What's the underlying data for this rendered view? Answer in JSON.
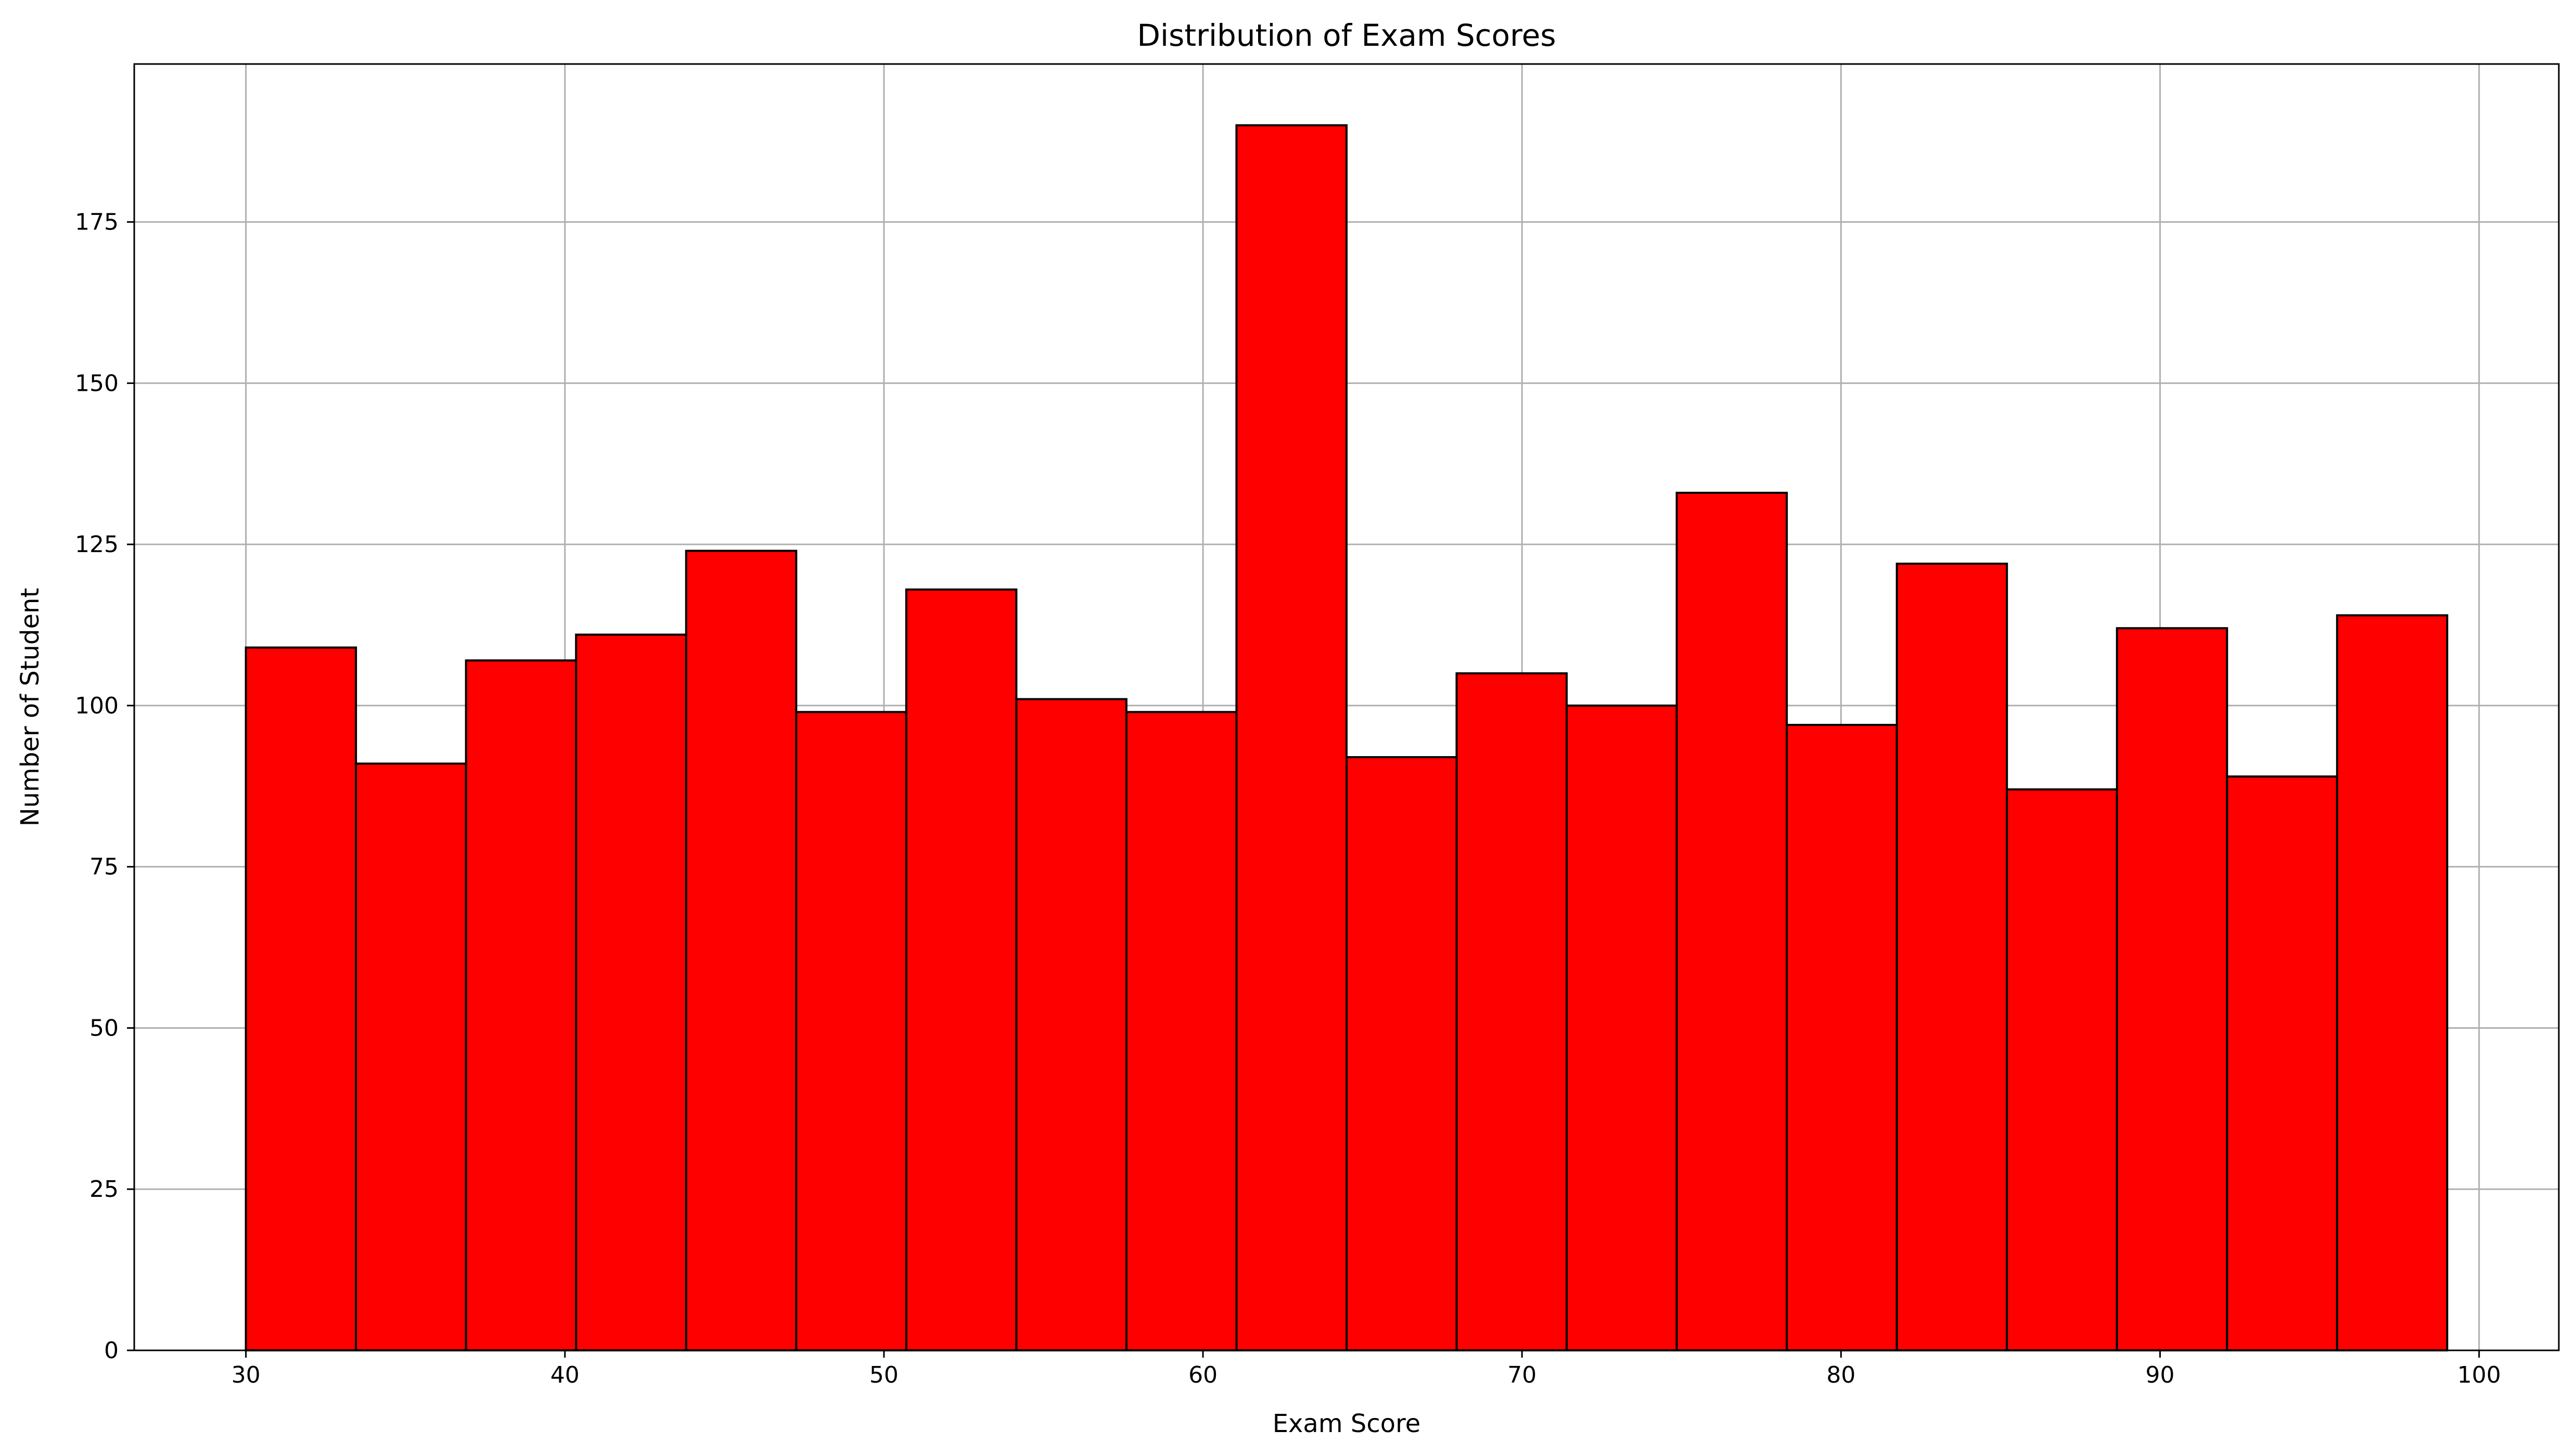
{
  "chart_data": {
    "type": "bar",
    "subtype": "histogram",
    "title": "Distribution of Exam Scores",
    "xlabel": "Exam Score",
    "ylabel": "Number of Student",
    "xlim": [
      26.5,
      102.5
    ],
    "ylim": [
      0,
      199.5
    ],
    "bin_edges": [
      30,
      33.45,
      36.9,
      40.35,
      43.8,
      47.25,
      50.7,
      54.15,
      57.6,
      61.05,
      64.5,
      67.95,
      71.4,
      74.85,
      78.3,
      81.75,
      85.2,
      88.65,
      92.1,
      95.55,
      99
    ],
    "values": [
      109,
      91,
      107,
      111,
      124,
      99,
      118,
      101,
      99,
      190,
      92,
      105,
      100,
      133,
      97,
      122,
      87,
      112,
      89,
      114
    ],
    "xticks": [
      30,
      40,
      50,
      60,
      70,
      80,
      90,
      100
    ],
    "yticks": [
      0,
      25,
      50,
      75,
      100,
      125,
      150,
      175
    ],
    "grid": true,
    "bar_color": "#ff0000",
    "edge_color": "#000000",
    "grid_color": "#b0b0b0"
  }
}
